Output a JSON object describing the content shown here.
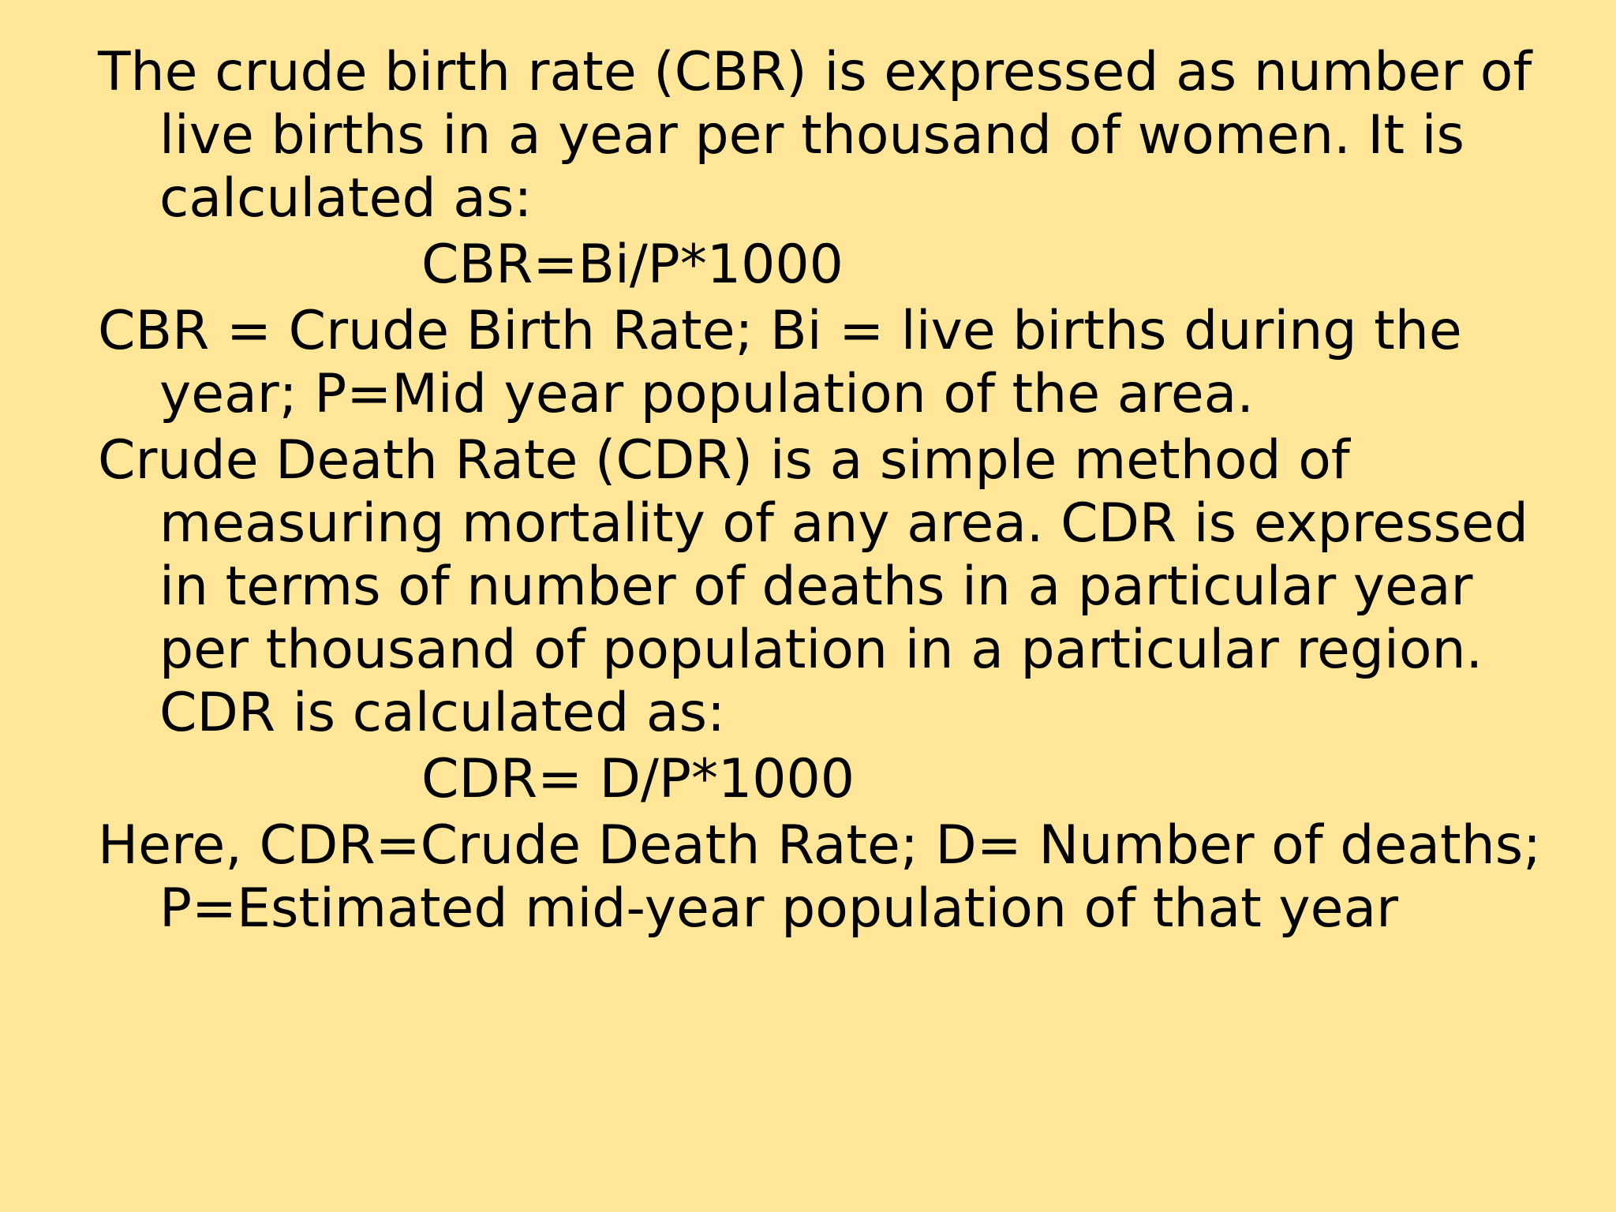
{
  "slide": {
    "background": "#FFE699",
    "text_color": "#000000",
    "paragraphs": [
      {
        "kind": "para",
        "text": "The crude birth rate (CBR) is expressed as number of live births in a year per thousand of women. It is calculated as:"
      },
      {
        "kind": "formula",
        "text": "CBR=Bi/P*1000"
      },
      {
        "kind": "para",
        "text": "CBR = Crude Birth Rate; Bi = live births during the year; P=Mid year population of the area."
      },
      {
        "kind": "para",
        "text": "Crude Death Rate (CDR) is a simple method of measuring mortality of any area. CDR is expressed in terms of number of deaths in a particular year per thousand of population in a particular region. CDR is calculated as:"
      },
      {
        "kind": "formula",
        "text": "CDR= D/P*1000"
      },
      {
        "kind": "para",
        "text": "Here, CDR=Crude Death Rate; D= Number of deaths; P=Estimated mid-year population of that year"
      }
    ]
  }
}
